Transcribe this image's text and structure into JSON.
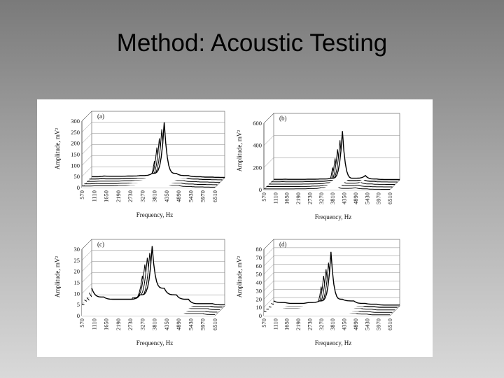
{
  "slide": {
    "title": "Method: Acoustic Testing"
  },
  "chart_data": [
    {
      "type": "line",
      "panel": "(a)",
      "xlabel": "Frequency, Hz",
      "ylabel": "Amplitude, mV²",
      "ylim": [
        0,
        300
      ],
      "yticks": [
        "0",
        "50",
        "100",
        "150",
        "200",
        "250",
        "300"
      ],
      "categories": [
        "570",
        "1110",
        "1650",
        "2190",
        "2730",
        "3270",
        "3810",
        "4350",
        "4890",
        "5430",
        "5970",
        "6510"
      ],
      "grid": true,
      "series_count": 5,
      "series": [
        {
          "values": [
            5,
            8,
            7,
            8,
            10,
            20,
            250,
            20,
            10,
            5,
            3,
            2
          ]
        },
        {
          "values": [
            5,
            7,
            6,
            8,
            10,
            20,
            230,
            22,
            12,
            5,
            3,
            2
          ]
        },
        {
          "values": [
            6,
            7,
            7,
            9,
            11,
            22,
            200,
            18,
            10,
            5,
            3,
            2
          ]
        },
        {
          "values": [
            6,
            8,
            7,
            9,
            12,
            25,
            170,
            16,
            10,
            5,
            3,
            2
          ]
        },
        {
          "values": [
            7,
            8,
            8,
            10,
            12,
            25,
            120,
            15,
            10,
            5,
            3,
            2
          ]
        }
      ]
    },
    {
      "type": "line",
      "panel": "(b)",
      "xlabel": "Frequency, Hz",
      "ylabel": "Amplitude, mV²",
      "ylim": [
        0,
        600
      ],
      "yticks": [
        "0",
        "200",
        "400",
        "600"
      ],
      "categories": [
        "570",
        "1110",
        "1650",
        "2190",
        "2730",
        "3270",
        "3810",
        "4350",
        "4890",
        "5430",
        "5970",
        "6510"
      ],
      "grid": true,
      "series_count": 5,
      "series": [
        {
          "values": [
            5,
            6,
            5,
            6,
            8,
            15,
            440,
            15,
            40,
            8,
            4,
            3
          ]
        },
        {
          "values": [
            5,
            6,
            5,
            6,
            8,
            15,
            380,
            15,
            30,
            8,
            4,
            3
          ]
        },
        {
          "values": [
            6,
            6,
            6,
            7,
            9,
            18,
            320,
            14,
            25,
            8,
            4,
            3
          ]
        },
        {
          "values": [
            6,
            7,
            6,
            7,
            10,
            20,
            260,
            14,
            20,
            8,
            4,
            3
          ]
        },
        {
          "values": [
            7,
            7,
            7,
            8,
            10,
            20,
            200,
            12,
            18,
            8,
            4,
            3
          ]
        }
      ]
    },
    {
      "type": "line",
      "panel": "(c)",
      "xlabel": "Frequency, Hz",
      "ylabel": "Amplitude, mV²",
      "ylim": [
        0,
        30
      ],
      "yticks": [
        "0",
        "5",
        "10",
        "15",
        "20",
        "25",
        "30"
      ],
      "categories": [
        "570",
        "1110",
        "1650",
        "2190",
        "2730",
        "3270",
        "3810",
        "4350",
        "4890",
        "5430",
        "5970",
        "6510"
      ],
      "grid": true,
      "series_count": 5,
      "series": [
        {
          "values": [
            8,
            4,
            3,
            3,
            5,
            27,
            8,
            5,
            3,
            1,
            1,
            0.5
          ]
        },
        {
          "values": [
            7,
            4,
            3,
            3,
            5,
            25,
            9,
            5,
            3,
            1,
            1,
            0.5
          ]
        },
        {
          "values": [
            6,
            4,
            3,
            4,
            6,
            24,
            10,
            5,
            3,
            1,
            1,
            0.5
          ]
        },
        {
          "values": [
            6,
            5,
            4,
            4,
            7,
            22,
            9,
            6,
            3,
            1,
            1,
            0.5
          ]
        },
        {
          "values": [
            5,
            5,
            4,
            5,
            7,
            18,
            8,
            6,
            3,
            1,
            1,
            0.5
          ]
        }
      ]
    },
    {
      "type": "line",
      "panel": "(d)",
      "xlabel": "Frequency, Hz",
      "ylabel": "Amplitude, mV²",
      "ylim": [
        0,
        80
      ],
      "yticks": [
        "0",
        "10",
        "20",
        "30",
        "40",
        "50",
        "60",
        "70",
        "80"
      ],
      "categories": [
        "570",
        "1110",
        "1650",
        "2190",
        "2730",
        "3270",
        "3810",
        "4350",
        "4890",
        "5430",
        "5970",
        "6510"
      ],
      "grid": true,
      "series_count": 5,
      "series": [
        {
          "values": [
            6,
            4,
            3,
            4,
            6,
            65,
            8,
            6,
            3,
            2,
            1,
            1
          ]
        },
        {
          "values": [
            6,
            4,
            3,
            4,
            6,
            55,
            9,
            6,
            3,
            2,
            1,
            1
          ]
        },
        {
          "values": [
            5,
            4,
            3,
            4,
            7,
            50,
            10,
            6,
            3,
            2,
            1,
            1
          ]
        },
        {
          "values": [
            5,
            5,
            4,
            5,
            7,
            45,
            10,
            7,
            3,
            2,
            1,
            1
          ]
        },
        {
          "values": [
            5,
            5,
            4,
            5,
            8,
            35,
            9,
            7,
            3,
            2,
            1,
            1
          ]
        }
      ]
    }
  ]
}
